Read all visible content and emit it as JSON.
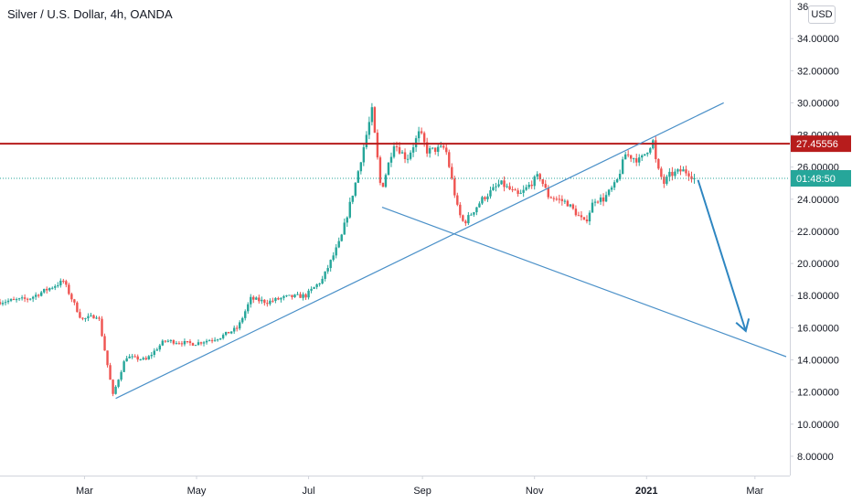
{
  "header": {
    "title": "Silver / U.S. Dollar, 4h, OANDA",
    "currency_button": "USD"
  },
  "chart_data": {
    "type": "candlestick",
    "symbol": "Silver / U.S. Dollar",
    "ylim": [
      6.8,
      36.4
    ],
    "ytick_values": [
      8,
      10,
      12,
      14,
      16,
      18,
      20,
      22,
      24,
      26,
      28,
      30,
      32,
      34
    ],
    "ytick_labels": [
      "8.00000",
      "10.00000",
      "12.00000",
      "14.00000",
      "16.00000",
      "18.00000",
      "20.00000",
      "22.00000",
      "24.00000",
      "26.00000",
      "28.00000",
      "30.00000",
      "32.00000",
      "34.00000"
    ],
    "top_partial_tick": "36",
    "xtick_labels": [
      "Mar",
      "May",
      "Jul",
      "Sep",
      "Nov",
      "2021",
      "Mar"
    ],
    "xtick_dates": [
      "2020-03-01",
      "2020-05-01",
      "2020-07-01",
      "2020-09-01",
      "2020-11-01",
      "2021-01-01",
      "2021-03-01"
    ],
    "xlim": [
      "2020-01-15",
      "2021-03-20"
    ],
    "price_path": [
      [
        "2020-01-15",
        17.6
      ],
      [
        "2020-02-01",
        17.8
      ],
      [
        "2020-02-20",
        18.9
      ],
      [
        "2020-03-01",
        16.5
      ],
      [
        "2020-03-10",
        16.8
      ],
      [
        "2020-03-18",
        11.8
      ],
      [
        "2020-03-25",
        14.2
      ],
      [
        "2020-04-05",
        14.0
      ],
      [
        "2020-04-15",
        15.2
      ],
      [
        "2020-05-01",
        15.0
      ],
      [
        "2020-05-15",
        15.4
      ],
      [
        "2020-05-25",
        16.0
      ],
      [
        "2020-06-01",
        17.8
      ],
      [
        "2020-06-10",
        17.6
      ],
      [
        "2020-06-20",
        17.9
      ],
      [
        "2020-07-01",
        18.0
      ],
      [
        "2020-07-10",
        19.0
      ],
      [
        "2020-07-20",
        21.5
      ],
      [
        "2020-07-28",
        25.0
      ],
      [
        "2020-08-02",
        27.5
      ],
      [
        "2020-08-06",
        29.5
      ],
      [
        "2020-08-11",
        24.5
      ],
      [
        "2020-08-18",
        27.5
      ],
      [
        "2020-08-25",
        26.5
      ],
      [
        "2020-09-01",
        28.2
      ],
      [
        "2020-09-05",
        27.0
      ],
      [
        "2020-09-15",
        27.2
      ],
      [
        "2020-09-22",
        23.2
      ],
      [
        "2020-09-25",
        22.5
      ],
      [
        "2020-10-05",
        24.0
      ],
      [
        "2020-10-15",
        25.0
      ],
      [
        "2020-10-25",
        24.2
      ],
      [
        "2020-11-05",
        25.5
      ],
      [
        "2020-11-10",
        24.2
      ],
      [
        "2020-11-20",
        23.8
      ],
      [
        "2020-11-30",
        22.5
      ],
      [
        "2020-12-05",
        24.0
      ],
      [
        "2020-12-10",
        24.0
      ],
      [
        "2020-12-17",
        25.0
      ],
      [
        "2020-12-22",
        26.8
      ],
      [
        "2020-12-30",
        26.4
      ],
      [
        "2021-01-06",
        27.6
      ],
      [
        "2021-01-08",
        26.0
      ],
      [
        "2021-01-12",
        25.0
      ],
      [
        "2021-01-15",
        25.5
      ],
      [
        "2021-01-22",
        25.8
      ],
      [
        "2021-01-26",
        25.6
      ],
      [
        "2021-01-28",
        25.3
      ]
    ],
    "horizontal_line": {
      "value": 27.45556,
      "color": "#b71c1c",
      "label": "27.45556"
    },
    "current_price": {
      "value": 25.3,
      "label": "01:48:50",
      "color": "#26a69a"
    },
    "trendlines": [
      {
        "from": [
          "2020-03-18",
          11.6
        ],
        "to": [
          "2021-02-12",
          30.0
        ],
        "color": "#4a90c8"
      },
      {
        "from": [
          "2020-08-10",
          23.5
        ],
        "to": [
          "2021-03-18",
          14.2
        ],
        "color": "#4a90c8"
      }
    ],
    "arrow": {
      "from": [
        "2021-01-29",
        25.2
      ],
      "to": [
        "2021-02-24",
        15.8
      ],
      "color": "#2e86c1"
    },
    "colors": {
      "up": "#26a69a",
      "down": "#ef5350",
      "text": "#131722",
      "axis": "#d1d4dc"
    }
  }
}
